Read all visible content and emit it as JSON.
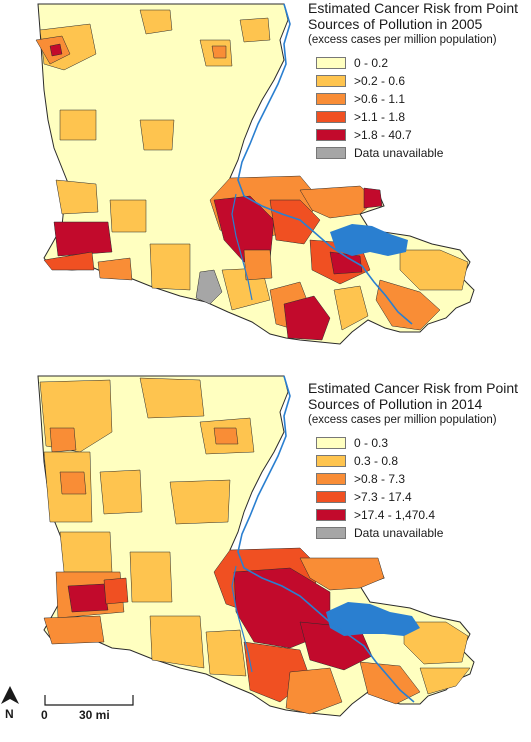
{
  "maps": [
    {
      "year": "2005",
      "title": "Estimated Cancer Risk from Point Sources of Pollution in 2005",
      "subtitle": "(excess cases per million population)",
      "legend": [
        {
          "label": "0 - 0.2",
          "color": "#ffffc0"
        },
        {
          "label": ">0.2 - 0.6",
          "color": "#fec44f"
        },
        {
          "label": ">0.6 - 1.1",
          "color": "#f98d36"
        },
        {
          "label": ">1.1 - 1.8",
          "color": "#f05022"
        },
        {
          "label": ">1.8 - 40.7",
          "color": "#c20a2c"
        },
        {
          "label": "Data unavailable",
          "color": "#a6a6a6"
        }
      ]
    },
    {
      "year": "2014",
      "title": "Estimated Cancer Risk from Point Sources of Pollution in 2014",
      "subtitle": "(excess cases per million population)",
      "legend": [
        {
          "label": "0 - 0.3",
          "color": "#ffffc0"
        },
        {
          "label": "0.3 - 0.8",
          "color": "#fec44f"
        },
        {
          "label": ">0.8 - 7.3",
          "color": "#f98d36"
        },
        {
          "label": ">7.3 - 17.4",
          "color": "#f05022"
        },
        {
          "label": ">17.4 - 1,470.4",
          "color": "#c20a2c"
        },
        {
          "label": "Data unavailable",
          "color": "#a6a6a6"
        }
      ]
    }
  ],
  "north_label": "N",
  "scale": {
    "zero": "0",
    "distance": "30 mi"
  },
  "colors": {
    "water": "#2a7fd0",
    "boundary": "#2b2b2b"
  }
}
